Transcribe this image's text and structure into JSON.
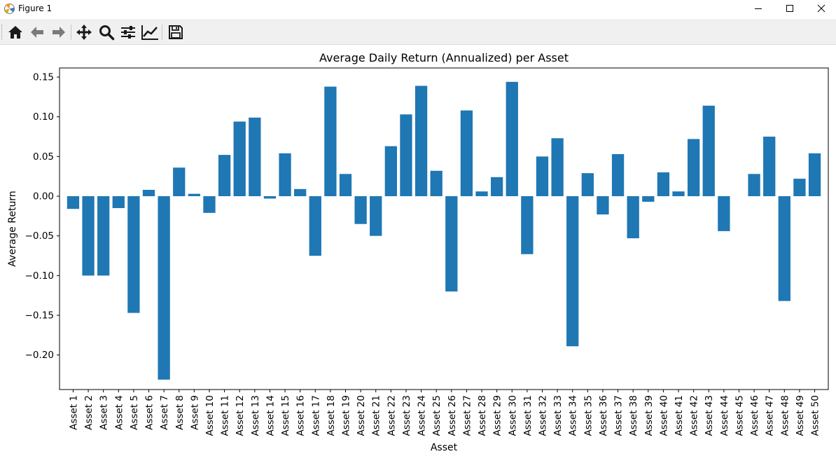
{
  "window": {
    "title": "Figure 1"
  },
  "toolbar": {
    "buttons": [
      {
        "name": "home-button",
        "icon": "home-icon"
      },
      {
        "name": "back-button",
        "icon": "arrow-left-icon"
      },
      {
        "name": "forward-button",
        "icon": "arrow-right-icon"
      },
      {
        "name": "pan-button",
        "icon": "move-icon"
      },
      {
        "name": "zoom-button",
        "icon": "zoom-icon"
      },
      {
        "name": "configure-subplots-button",
        "icon": "sliders-icon"
      },
      {
        "name": "edit-axis-button",
        "icon": "line-chart-icon"
      },
      {
        "name": "save-button",
        "icon": "floppy-disk-icon"
      }
    ]
  },
  "colors": {
    "bar": "#1f77b4",
    "toolbar_bg": "#f0f0f0",
    "frame": "#000000"
  },
  "chart_data": {
    "type": "bar",
    "title": "Average Daily Return (Annualized) per Asset",
    "xlabel": "Asset",
    "ylabel": "Average Return",
    "ylim": [
      -0.2435,
      0.1615
    ],
    "yticks": [
      0.15,
      0.1,
      0.05,
      0.0,
      -0.05,
      -0.1,
      -0.15,
      -0.2
    ],
    "ytick_labels": [
      "0.15",
      "0.10",
      "0.05",
      "0.00",
      "−0.05",
      "−0.10",
      "−0.15",
      "−0.20"
    ],
    "grid": false,
    "categories": [
      "Asset 1",
      "Asset 2",
      "Asset 3",
      "Asset 4",
      "Asset 5",
      "Asset 6",
      "Asset 7",
      "Asset 8",
      "Asset 9",
      "Asset 10",
      "Asset 11",
      "Asset 12",
      "Asset 13",
      "Asset 14",
      "Asset 15",
      "Asset 16",
      "Asset 17",
      "Asset 18",
      "Asset 19",
      "Asset 20",
      "Asset 21",
      "Asset 22",
      "Asset 23",
      "Asset 24",
      "Asset 25",
      "Asset 26",
      "Asset 27",
      "Asset 28",
      "Asset 29",
      "Asset 30",
      "Asset 31",
      "Asset 32",
      "Asset 33",
      "Asset 34",
      "Asset 35",
      "Asset 36",
      "Asset 37",
      "Asset 38",
      "Asset 39",
      "Asset 40",
      "Asset 41",
      "Asset 42",
      "Asset 43",
      "Asset 44",
      "Asset 45",
      "Asset 46",
      "Asset 47",
      "Asset 48",
      "Asset 49",
      "Asset 50"
    ],
    "values": [
      -0.016,
      -0.1,
      -0.1,
      -0.015,
      -0.147,
      0.008,
      -0.231,
      0.036,
      0.003,
      -0.021,
      0.052,
      0.094,
      0.099,
      -0.003,
      0.054,
      0.009,
      -0.075,
      0.138,
      0.028,
      -0.035,
      -0.05,
      0.063,
      0.103,
      0.139,
      0.032,
      -0.12,
      0.108,
      0.006,
      0.024,
      0.144,
      -0.073,
      0.05,
      0.073,
      -0.189,
      0.029,
      -0.023,
      0.053,
      -0.053,
      -0.007,
      0.03,
      0.006,
      0.072,
      0.114,
      -0.044,
      0.0,
      0.028,
      0.075,
      -0.132,
      0.022,
      0.054
    ]
  }
}
